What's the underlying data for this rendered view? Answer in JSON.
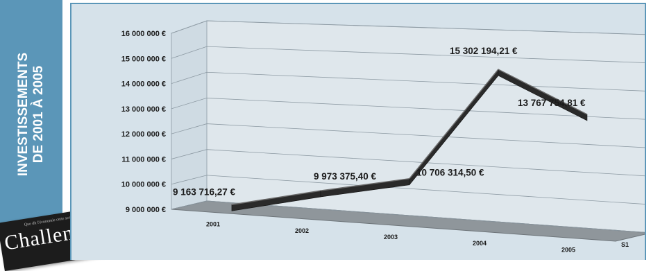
{
  "banner": {
    "line1": "INVESTISSEMENTS",
    "line2": "DE 2001 À 2005"
  },
  "magazine": {
    "tagline": "Que dit l'économie cette semaine ?",
    "title": "Challenges"
  },
  "colors": {
    "banner": "#5b96b8",
    "wall": "#d6e2ea",
    "floor": "#8f969b",
    "ribbon": "#2a2a2a",
    "ribbon_top": "#6a6a6a"
  },
  "chart_data": {
    "type": "line",
    "style": "3d-ribbon",
    "grid": true,
    "categories": [
      "2001",
      "2002",
      "2003",
      "2004",
      "2005"
    ],
    "series": [
      {
        "name": "S1",
        "values": [
          9163716.27,
          9973375.4,
          10706314.5,
          15302194.21,
          13767754.81
        ]
      }
    ],
    "data_labels": [
      "9 163 716,27 €",
      "9 973 375,40 €",
      "10 706 314,50 €",
      "15 302 194,21 €",
      "13 767 754,81 €"
    ],
    "ylim": [
      9000000,
      16000000
    ],
    "yticks": [
      9000000,
      10000000,
      11000000,
      12000000,
      13000000,
      14000000,
      15000000,
      16000000
    ],
    "ytick_labels": [
      "9 000 000 €",
      "10 000 000 €",
      "11 000 000 €",
      "12 000 000 €",
      "13 000 000 €",
      "14 000 000 €",
      "15 000 000 €",
      "16 000 000 €"
    ],
    "depth_label": "S1"
  }
}
